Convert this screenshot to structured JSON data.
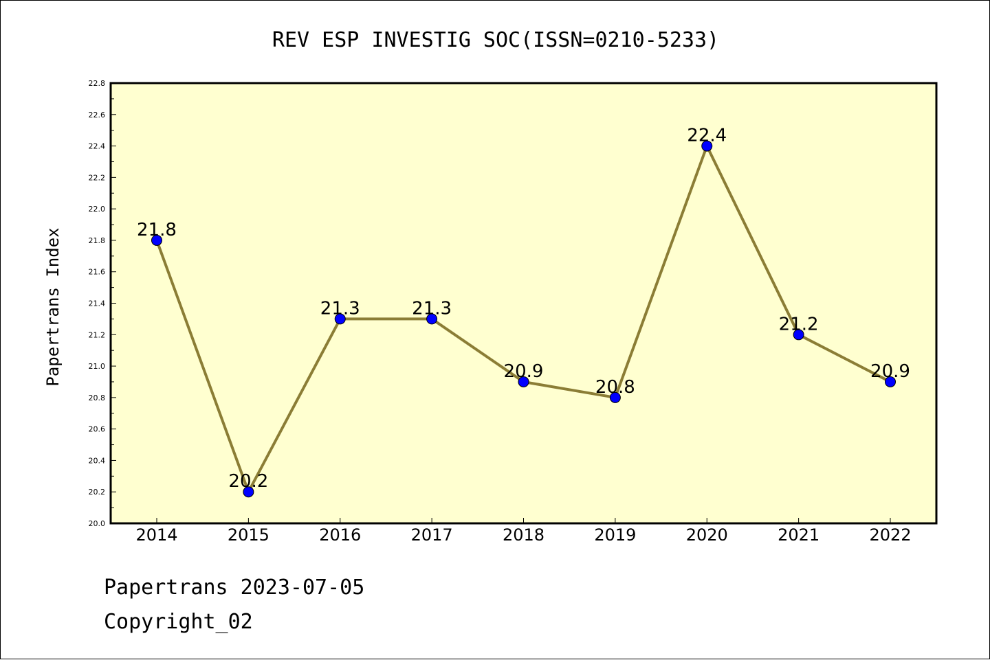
{
  "chart_data": {
    "type": "line",
    "title": "REV ESP INVESTIG SOC(ISSN=0210-5233)",
    "xlabel": "",
    "ylabel": "Papertrans Index",
    "categories": [
      "2014",
      "2015",
      "2016",
      "2017",
      "2018",
      "2019",
      "2020",
      "2021",
      "2022"
    ],
    "values": [
      21.8,
      20.2,
      21.3,
      21.3,
      20.9,
      20.8,
      22.4,
      21.2,
      20.9
    ],
    "point_labels": [
      "21.8",
      "20.2",
      "21.3",
      "21.3",
      "20.9",
      "20.8",
      "22.4",
      "21.2",
      "20.9"
    ],
    "ylim": [
      20.0,
      22.8
    ],
    "yticks": [
      "20.0",
      "20.2",
      "20.4",
      "20.6",
      "20.8",
      "21.0",
      "21.2",
      "21.4",
      "21.6",
      "21.8",
      "22.0",
      "22.2",
      "22.4",
      "22.6",
      "22.8"
    ],
    "grid": false,
    "legend": "none",
    "colors": {
      "plot_background": "#ffffd0",
      "line": "#8b7d35",
      "marker": "#0000ff"
    }
  },
  "footer": {
    "line1": "Papertrans 2023-07-05",
    "line2": "Copyright_02"
  }
}
